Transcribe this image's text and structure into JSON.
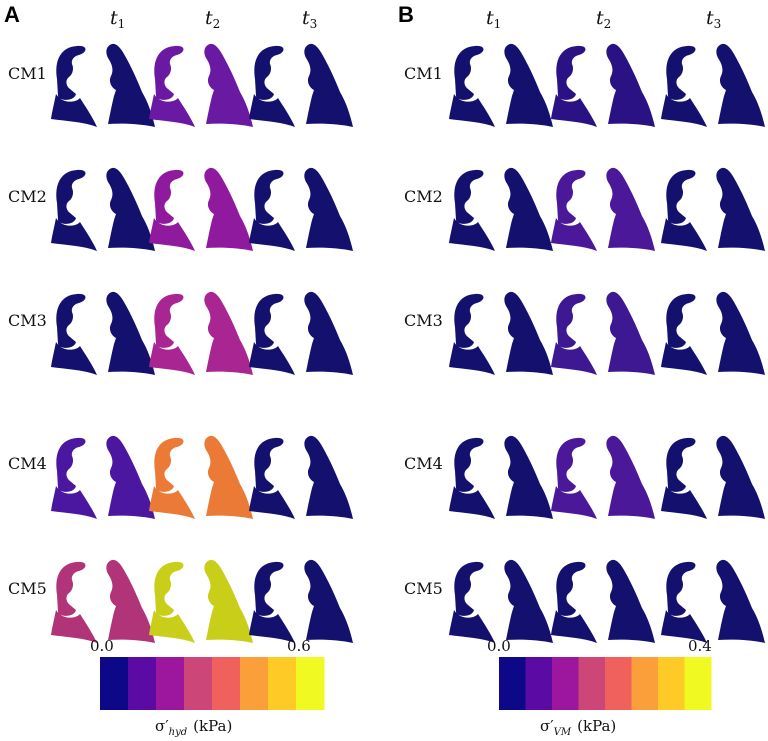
{
  "figure": {
    "panels": [
      {
        "label": "A",
        "columns": [
          {
            "main": "t",
            "sub": "1"
          },
          {
            "main": "t",
            "sub": "2"
          },
          {
            "main": "t",
            "sub": "3"
          }
        ],
        "rows": [
          "CM1",
          "CM2",
          "CM3",
          "CM4",
          "CM5"
        ],
        "fills": [
          [
            "#14106e",
            "#6a1aa2",
            "#14106e"
          ],
          [
            "#14106e",
            "#8f1a9e",
            "#14106e"
          ],
          [
            "#14106e",
            "#a82592",
            "#14106e"
          ],
          [
            "#4b16a0",
            "#ea7a36",
            "#14106e"
          ],
          [
            "#b13478",
            "#c9cf18",
            "#14106e"
          ]
        ],
        "colorbar": {
          "min_label": "0.0",
          "max_label": "0.6",
          "symbol": "σ′",
          "subscript": "hyd",
          "unit": "(kPa)",
          "colors": [
            "#0d0887",
            "#5b0aa4",
            "#9c179e",
            "#cc4678",
            "#f0605d",
            "#fb9f3a",
            "#fdca26",
            "#f0f921"
          ]
        }
      },
      {
        "label": "B",
        "columns": [
          {
            "main": "t",
            "sub": "1"
          },
          {
            "main": "t",
            "sub": "2"
          },
          {
            "main": "t",
            "sub": "3"
          }
        ],
        "rows": [
          "CM1",
          "CM2",
          "CM3",
          "CM4",
          "CM5"
        ],
        "fills": [
          [
            "#14106e",
            "#2a1285",
            "#14106e"
          ],
          [
            "#14106e",
            "#4a1899",
            "#14106e"
          ],
          [
            "#14106e",
            "#3e1792",
            "#14106e"
          ],
          [
            "#14106e",
            "#4a1899",
            "#14106e"
          ],
          [
            "#14106e",
            "#14106e",
            "#14106e"
          ]
        ],
        "colorbar": {
          "min_label": "0.0",
          "max_label": "0.4",
          "symbol": "σ′",
          "subscript": "VM",
          "unit": "(kPa)",
          "colors": [
            "#0d0887",
            "#5b0aa4",
            "#9c179e",
            "#cc4678",
            "#f0605d",
            "#fb9f3a",
            "#fdca26",
            "#f0f921"
          ]
        }
      }
    ]
  }
}
